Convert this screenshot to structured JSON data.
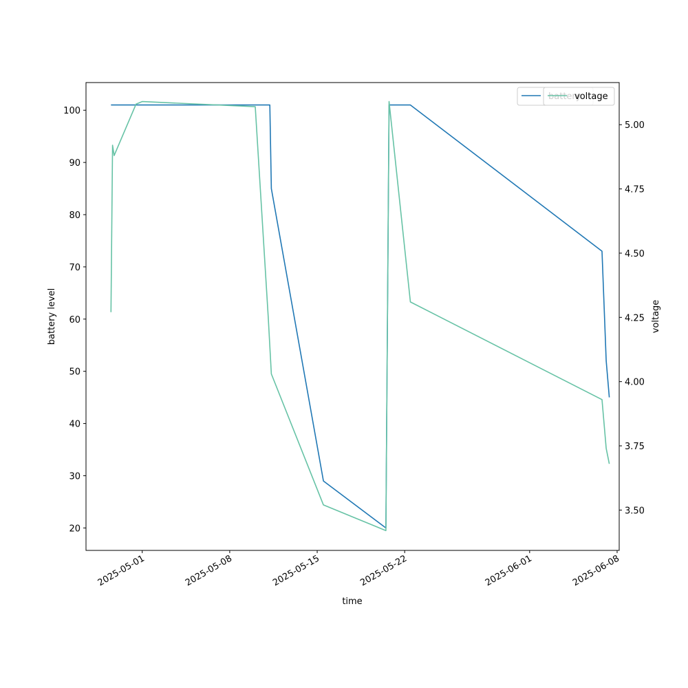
{
  "chart_data": {
    "type": "line",
    "xlabel": "time",
    "ylabel": "battery level",
    "y2label": "voltage",
    "x_ticks": [
      "2025-05-01",
      "2025-05-08",
      "2025-05-15",
      "2025-05-22",
      "2025-06-01",
      "2025-06-08"
    ],
    "y_ticks": [
      20,
      30,
      40,
      50,
      60,
      70,
      80,
      90,
      100
    ],
    "y2_ticks": [
      "3.50",
      "3.75",
      "4.00",
      "4.25",
      "4.50",
      "4.75",
      "5.00"
    ],
    "xlim": [
      "2025-04-26T12:00",
      "2025-06-08T04:00"
    ],
    "ylim": [
      15.7,
      105.3
    ],
    "y2lim": [
      3.343,
      5.164
    ],
    "legend_position": "upper right",
    "series": [
      {
        "name": "battery",
        "axis": "left",
        "color": "#1f77b4",
        "points": [
          [
            "2025-04-28T12:00",
            101
          ],
          [
            "2025-05-11T05:00",
            101
          ],
          [
            "2025-05-11T08:00",
            85
          ],
          [
            "2025-05-15T12:00",
            29
          ],
          [
            "2025-05-20T12:00",
            20
          ],
          [
            "2025-05-20T18:00",
            101
          ],
          [
            "2025-05-22T11:00",
            101
          ],
          [
            "2025-06-06T19:00",
            73
          ],
          [
            "2025-06-07T03:00",
            52
          ],
          [
            "2025-06-07T09:00",
            45
          ]
        ]
      },
      {
        "name": "voltage",
        "axis": "right",
        "color": "#66c2a5",
        "points": [
          [
            "2025-04-28T12:00",
            4.27
          ],
          [
            "2025-04-28T15:00",
            4.92
          ],
          [
            "2025-04-28T18:00",
            4.88
          ],
          [
            "2025-04-30T12:00",
            5.08
          ],
          [
            "2025-05-01T00:00",
            5.09
          ],
          [
            "2025-05-10T01:00",
            5.07
          ],
          [
            "2025-05-11T02:00",
            4.25
          ],
          [
            "2025-05-11T08:00",
            4.03
          ],
          [
            "2025-05-15T12:00",
            3.52
          ],
          [
            "2025-05-20T12:00",
            3.42
          ],
          [
            "2025-05-20T18:00",
            5.09
          ],
          [
            "2025-05-22T11:00",
            4.31
          ],
          [
            "2025-06-06T19:00",
            3.93
          ],
          [
            "2025-06-07T03:00",
            3.74
          ],
          [
            "2025-06-07T09:00",
            3.68
          ]
        ]
      }
    ]
  }
}
